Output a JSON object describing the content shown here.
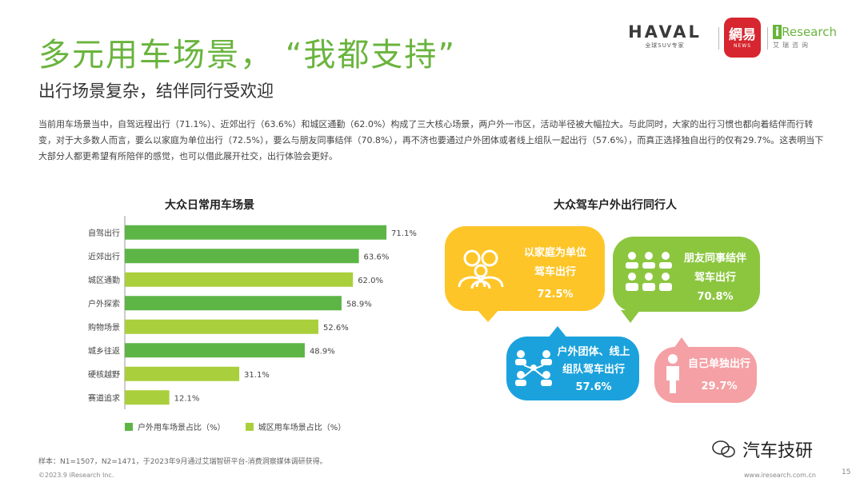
{
  "header": {
    "title": "多元用车场景，  “我都支持”",
    "subtitle": "出行场景复杂，结伴同行受欢迎",
    "intro": "当前用车场景当中，自驾远程出行（71.1%）、近郊出行（63.6%）和城区通勤（62.0%）构成了三大核心场景，两户外一市区，活动半径被大幅拉大。与此同时，大家的出行习惯也都向着结伴而行转变，对于大多数人而言，要么以家庭为单位出行（72.5%），要么与朋友同事结伴（70.8%），再不济也要通过户外团体或者线上组队一起出行（57.6%），而真正选择独自出行的仅有29.7%。这表明当下大部分人都更希望有所陪伴的感觉，也可以借此展开社交，出行体验会更好。"
  },
  "logos": {
    "haval": "HAVAL",
    "haval_sub": "全球SUV专家",
    "netease": "網易",
    "netease_sub": "NEWS",
    "iresearch_i": "i",
    "iresearch": "Research",
    "iresearch_sub": "艾瑞咨询"
  },
  "chart_data": {
    "type": "bar",
    "orientation": "horizontal",
    "title": "大众日常用车场景",
    "categories": [
      "自驾出行",
      "近郊出行",
      "城区通勤",
      "户外探索",
      "购物场景",
      "城乡往返",
      "硬核越野",
      "赛道追求"
    ],
    "values": [
      71.1,
      63.6,
      62.0,
      58.9,
      52.6,
      48.9,
      31.1,
      12.1
    ],
    "value_labels": [
      "71.1%",
      "63.6%",
      "62.0%",
      "58.9%",
      "52.6%",
      "48.9%",
      "31.1%",
      "12.1%"
    ],
    "series_group": [
      "outdoor",
      "outdoor",
      "city",
      "outdoor",
      "city",
      "outdoor",
      "city",
      "city"
    ],
    "legend": [
      {
        "key": "outdoor",
        "name": "户外用车场景占比（%）",
        "color": "#5db546"
      },
      {
        "key": "city",
        "name": "城区用车场景占比（%）",
        "color": "#a9cf3c"
      }
    ],
    "xlim": [
      0,
      100
    ],
    "grid": false,
    "legend_position": "bottom"
  },
  "companions": {
    "title": "大众驾车户外出行同行人",
    "items": [
      {
        "label1": "以家庭为单位",
        "label2": "驾车出行",
        "value": "72.5%",
        "color": "#fdc528"
      },
      {
        "label1": "朋友同事结伴",
        "label2": "驾车出行",
        "value": "70.8%",
        "color": "#8cc63f"
      },
      {
        "label1": "户外团体、线上",
        "label2": "组队驾车出行",
        "value": "57.6%",
        "color": "#1ba2dc"
      },
      {
        "label1": "自己单独出行",
        "label2": "",
        "value": "29.7%",
        "color": "#f4a0a4"
      }
    ]
  },
  "footer": {
    "source": "样本：N1=1507，N2=1471，于2023年9月通过艾瑞智研平台-消费洞察媒体调研获得。",
    "copyright": "©2023.9 iResearch Inc.",
    "site": "www.iresearch.com.cn",
    "page": "15",
    "wechat": "汽车技研"
  }
}
